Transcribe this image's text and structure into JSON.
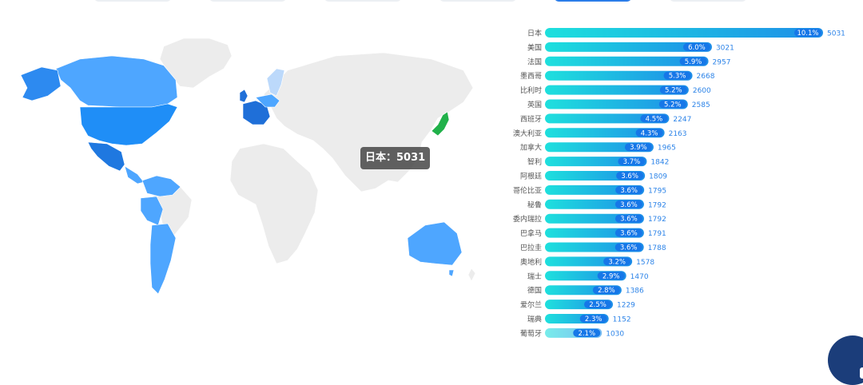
{
  "top_tabs": [
    "",
    "",
    "",
    "",
    "",
    ""
  ],
  "active_tab": 4,
  "tooltip": {
    "label": "日本：5031"
  },
  "colors": {
    "land": "#ececec",
    "border": "#ffffff",
    "level_max": "#1f6fd8",
    "level_high": "#2d8af0",
    "level_mid": "#4ea6ff",
    "level_light": "#bcd9fb",
    "highlight": "#21b14a",
    "bar_start": "#1ee0dd",
    "bar_end": "#1e8ee8",
    "value_text": "#2d84e8",
    "label_text": "#555555"
  },
  "chart_data": {
    "type": "bar",
    "orientation": "horizontal",
    "categories": [
      "日本",
      "美国",
      "法国",
      "墨西哥",
      "比利时",
      "英国",
      "西班牙",
      "澳大利亚",
      "加拿大",
      "智利",
      "阿根廷",
      "哥伦比亚",
      "秘鲁",
      "委内瑞拉",
      "巴拿马",
      "巴拉圭",
      "奥地利",
      "瑞士",
      "德国",
      "爱尔兰",
      "瑞典",
      "葡萄牙"
    ],
    "values": [
      5031,
      3021,
      2957,
      2668,
      2600,
      2585,
      2247,
      2163,
      1965,
      1842,
      1809,
      1795,
      1792,
      1792,
      1791,
      1788,
      1578,
      1470,
      1386,
      1229,
      1152,
      1030
    ],
    "percent_labels": [
      "10.1%",
      "6.0%",
      "5.9%",
      "5.3%",
      "5.2%",
      "5.2%",
      "4.5%",
      "4.3%",
      "3.9%",
      "3.7%",
      "3.6%",
      "3.6%",
      "3.6%",
      "3.6%",
      "3.6%",
      "3.6%",
      "3.2%",
      "2.9%",
      "2.8%",
      "2.5%",
      "2.3%",
      "2.1%"
    ],
    "xlim": [
      0,
      5031
    ]
  }
}
